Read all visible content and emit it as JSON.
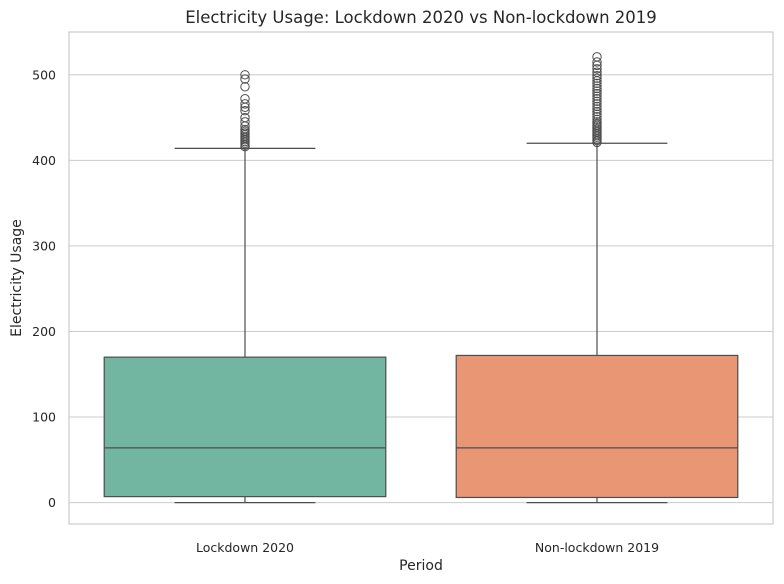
{
  "chart_data": {
    "type": "box",
    "title": "Electricity Usage: Lockdown 2020 vs Non-lockdown 2019",
    "xlabel": "Period",
    "ylabel": "Electricity Usage",
    "ylim": [
      -25,
      550
    ],
    "yticks": [
      0,
      100,
      200,
      300,
      400,
      500
    ],
    "grid": "y",
    "categories": [
      "Lockdown 2020",
      "Non-lockdown 2019"
    ],
    "boxes": [
      {
        "label": "Lockdown 2020",
        "color": "#72b6a1",
        "whisker_low": 0,
        "q1": 7,
        "median": 64,
        "q3": 170,
        "whisker_high": 414,
        "outliers": [
          416,
          418,
          420,
          422,
          424,
          426,
          428,
          430,
          432,
          434,
          436,
          440,
          445,
          450,
          458,
          462,
          466,
          472,
          486,
          495,
          500
        ]
      },
      {
        "label": "Non-lockdown 2019",
        "color": "#e99675",
        "whisker_low": 0,
        "q1": 6,
        "median": 64,
        "q3": 172,
        "whisker_high": 420,
        "outliers": [
          421,
          423,
          425,
          427,
          429,
          431,
          433,
          435,
          437,
          439,
          441,
          443,
          445,
          448,
          451,
          454,
          457,
          460,
          463,
          466,
          469,
          472,
          475,
          478,
          481,
          484,
          487,
          490,
          493,
          496,
          499,
          503,
          507,
          511,
          515,
          521
        ]
      }
    ]
  }
}
